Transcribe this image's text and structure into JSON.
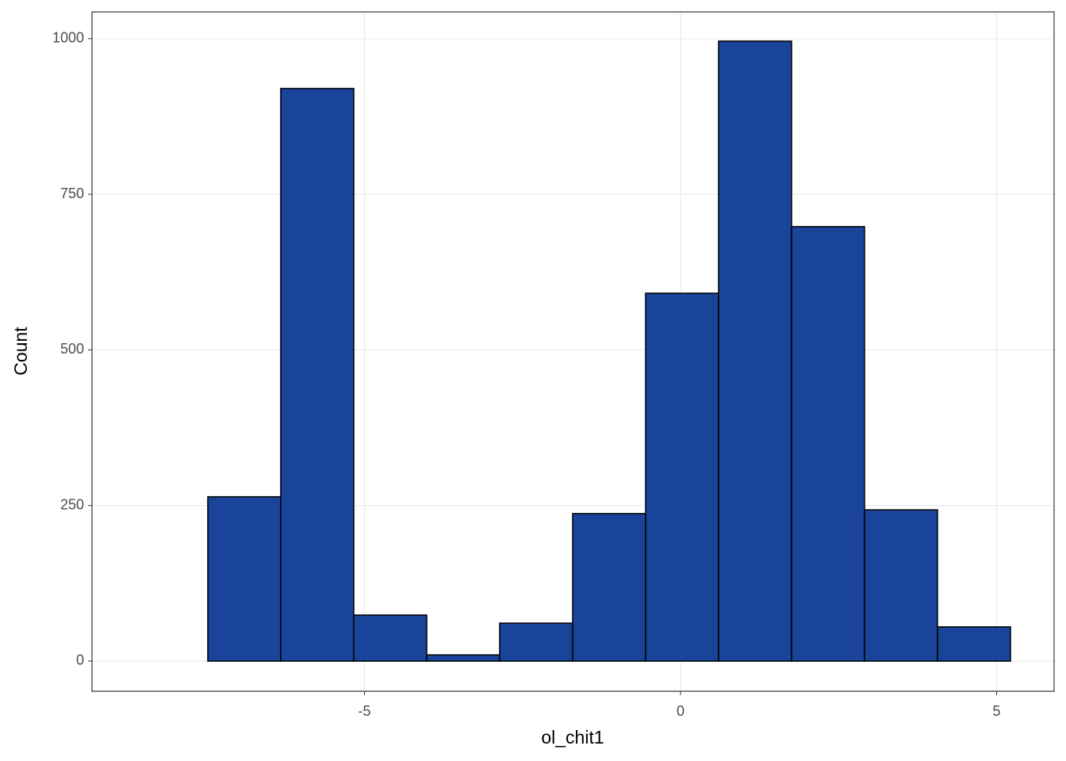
{
  "chart_data": {
    "type": "histogram",
    "x_label": "ol_chit1",
    "y_label": "Count",
    "bins": [
      -8.632,
      -7.478,
      -6.324,
      -5.169,
      -4.015,
      -2.861,
      -1.706,
      -0.552,
      0.602,
      1.757,
      2.911,
      4.065,
      5.22
    ],
    "counts": [
      0,
      264,
      920,
      74,
      10,
      61,
      237,
      591,
      996,
      698,
      243,
      55
    ],
    "color": "#1a4499",
    "edge_color": "#000000",
    "xlim": [
      -9.31,
      5.91
    ],
    "ylim": [
      -48.4,
      1043
    ],
    "xticks": [
      -5,
      0,
      5
    ],
    "yticks": [
      0,
      250,
      500,
      750,
      1000
    ],
    "grid": true
  }
}
